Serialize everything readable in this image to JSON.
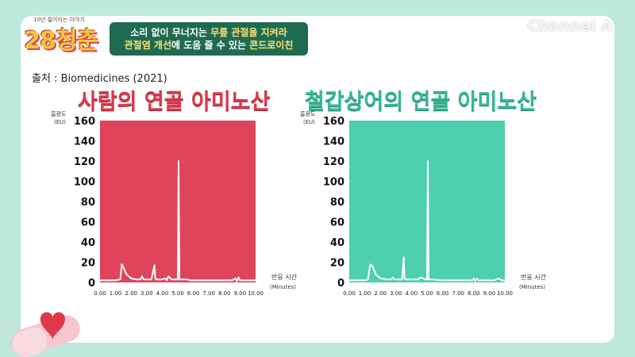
{
  "header": {
    "logo_small": "10년 젊어지는 이야기",
    "logo_main": "28청춘",
    "banner_line1_pre": "소리 없이 무너지는 ",
    "banner_line1_hl": "무릎 관절을 지켜라",
    "banner_line2_hl1": "관절염 개선",
    "banner_line2_mid": "에 도움 줄 수 있는 ",
    "banner_line2_hl2": "콘드로이친",
    "channel": "Channel A"
  },
  "source_text": "출처 : Biomedicines (2021)",
  "chart_data": [
    {
      "type": "line",
      "title": "사람의 연골 아미노산",
      "ylabel_line1": "흡광도",
      "ylabel_line2": "(EU)",
      "xlabel_line1": "반응 시간",
      "xlabel_line2": "(Minutes)",
      "ylim": [
        0,
        160
      ],
      "xlim": [
        0,
        10
      ],
      "yticks": [
        "0",
        "20",
        "40",
        "60",
        "80",
        "100",
        "120",
        "140",
        "160"
      ],
      "xticks": [
        "0.00",
        "1.00",
        "2.00",
        "3.00",
        "4.00",
        "5.00",
        "6.00",
        "7.00",
        "8.00",
        "9.00",
        "10.00"
      ],
      "background": "#e0445a",
      "line_color": "#ffffff",
      "x": [
        0,
        0.5,
        1.0,
        1.3,
        1.4,
        1.5,
        1.7,
        2.0,
        2.3,
        2.6,
        2.7,
        2.8,
        3.0,
        3.3,
        3.5,
        3.55,
        3.6,
        3.8,
        4.0,
        4.2,
        4.3,
        4.4,
        4.6,
        4.9,
        5.0,
        5.05,
        5.1,
        5.4,
        5.6,
        5.8,
        6.0,
        6.5,
        7.0,
        7.5,
        8.0,
        8.5,
        8.7,
        8.8,
        8.9,
        9.0,
        9.5,
        10.0
      ],
      "y": [
        2,
        2,
        2,
        3,
        18,
        15,
        8,
        4,
        3,
        3,
        6,
        3,
        3,
        3,
        17,
        4,
        3,
        3,
        3,
        4,
        2,
        6,
        3,
        3,
        3,
        120,
        3,
        3,
        3,
        2,
        2,
        2,
        2,
        2,
        2,
        2,
        4,
        1,
        5,
        2,
        2,
        2
      ]
    },
    {
      "type": "line",
      "title": "철갑상어의 연골 아미노산",
      "ylabel_line1": "흡광도",
      "ylabel_line2": "(EU)",
      "xlabel_line1": "반응 시간",
      "xlabel_line2": "(Minutes)",
      "ylim": [
        0,
        160
      ],
      "xlim": [
        0,
        10
      ],
      "yticks": [
        "0",
        "20",
        "40",
        "60",
        "80",
        "100",
        "120",
        "140",
        "160"
      ],
      "xticks": [
        "0.00",
        "1.00",
        "2.00",
        "3.00",
        "4.00",
        "5.00",
        "6.00",
        "7.00",
        "8.00",
        "9.00",
        "10.00"
      ],
      "background": "#4ecfae",
      "line_color": "#ffffff",
      "x": [
        0,
        0.5,
        1.0,
        1.2,
        1.35,
        1.5,
        1.7,
        2.0,
        2.4,
        2.7,
        2.8,
        2.9,
        3.2,
        3.4,
        3.5,
        3.55,
        3.6,
        4.0,
        4.4,
        4.6,
        4.9,
        5.0,
        5.05,
        5.1,
        5.4,
        5.8,
        6.0,
        6.5,
        7.0,
        7.5,
        7.9,
        8.0,
        8.1,
        8.2,
        8.3,
        8.6,
        9.0,
        9.3,
        9.6,
        9.8,
        10.0
      ],
      "y": [
        2,
        2,
        2,
        3,
        18,
        16,
        8,
        4,
        3,
        3,
        5,
        3,
        3,
        3,
        25,
        4,
        3,
        3,
        3,
        5,
        3,
        3,
        120,
        3,
        3,
        2,
        2,
        2,
        2,
        2,
        2,
        4,
        1,
        4,
        2,
        2,
        2,
        2,
        4,
        2,
        2
      ]
    }
  ]
}
